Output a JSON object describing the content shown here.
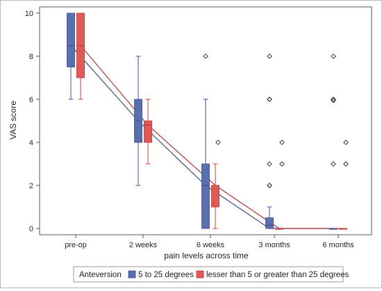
{
  "chart_data": {
    "type": "box",
    "xlabel": "pain levels across time",
    "ylabel": "VAS score",
    "ylim": [
      0,
      10
    ],
    "yticks": [
      0,
      2,
      4,
      6,
      8,
      10
    ],
    "categories": [
      "pre-op",
      "2 weeks",
      "6 weeks",
      "3 months",
      "6 months"
    ],
    "legend": {
      "title": "Anteversion",
      "placement": "bottom"
    },
    "series": [
      {
        "name": "5 to 25 degrees",
        "color": "#5a6fb0",
        "boxes": [
          {
            "min": 6,
            "q1": 7.5,
            "median": 8.5,
            "q3": 10,
            "max": 10,
            "outliers": []
          },
          {
            "min": 2,
            "q1": 4,
            "median": 5,
            "q3": 6,
            "max": 8,
            "outliers": []
          },
          {
            "min": 0,
            "q1": 0,
            "median": 2,
            "q3": 3,
            "max": 6,
            "outliers": [
              8
            ]
          },
          {
            "min": 0,
            "q1": 0,
            "median": 0.15,
            "q3": 0.5,
            "max": 1,
            "outliers": [
              2,
              2,
              3,
              6,
              6,
              8
            ]
          },
          {
            "min": 0,
            "q1": 0,
            "median": 0,
            "q3": 0,
            "max": 0,
            "outliers": [
              3,
              5.95,
              6,
              8
            ]
          }
        ],
        "mean_line": [
          8.5,
          5,
          2,
          0,
          0
        ]
      },
      {
        "name": "lesser than 5 or greater than 25 degrees",
        "color": "#e05a5a",
        "boxes": [
          {
            "min": 6,
            "q1": 7,
            "median": 8.5,
            "q3": 10,
            "max": 10,
            "outliers": []
          },
          {
            "min": 3,
            "q1": 4,
            "median": 4.8,
            "q3": 5,
            "max": 6,
            "outliers": []
          },
          {
            "min": 0,
            "q1": 1,
            "median": 2,
            "q3": 2,
            "max": 3,
            "outliers": [
              4
            ]
          },
          {
            "min": 0,
            "q1": 0,
            "median": 0,
            "q3": 0,
            "max": 0,
            "outliers": [
              3,
              4
            ]
          },
          {
            "min": 0,
            "q1": 0,
            "median": 0,
            "q3": 0,
            "max": 0,
            "outliers": [
              3,
              4
            ]
          }
        ],
        "mean_line": [
          8.5,
          4.8,
          2,
          0,
          0
        ]
      }
    ]
  }
}
